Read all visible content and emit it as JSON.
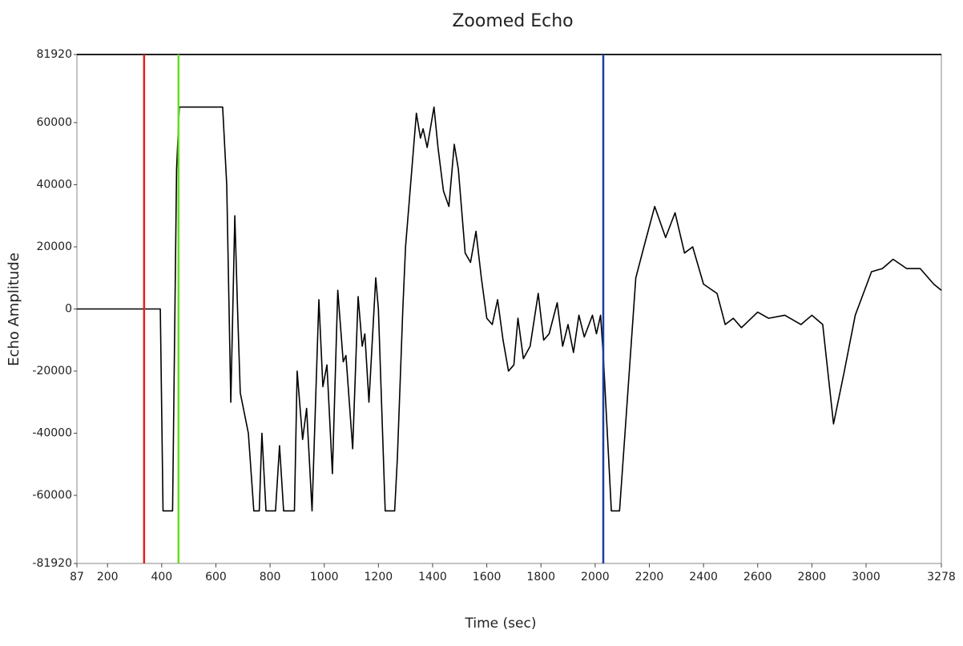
{
  "chart_data": {
    "type": "line",
    "title": "Zoomed Echo",
    "x_label": "Time (sec)",
    "y_label": "Echo Amplitude",
    "color": "#000000",
    "x": [
      87,
      395,
      405,
      440,
      455,
      465,
      625,
      640,
      655,
      670,
      680,
      690,
      720,
      740,
      760,
      770,
      785,
      820,
      835,
      850,
      890,
      900,
      920,
      935,
      955,
      980,
      995,
      1010,
      1030,
      1050,
      1070,
      1080,
      1105,
      1125,
      1140,
      1150,
      1165,
      1190,
      1200,
      1225,
      1260,
      1270,
      1290,
      1300,
      1340,
      1355,
      1365,
      1380,
      1405,
      1420,
      1440,
      1460,
      1480,
      1495,
      1520,
      1540,
      1560,
      1580,
      1600,
      1620,
      1640,
      1660,
      1680,
      1700,
      1715,
      1735,
      1760,
      1790,
      1810,
      1830,
      1860,
      1880,
      1900,
      1920,
      1940,
      1960,
      1990,
      2005,
      2020,
      2030,
      2060,
      2090,
      2110,
      2150,
      2180,
      2220,
      2260,
      2295,
      2330,
      2360,
      2400,
      2450,
      2480,
      2510,
      2540,
      2600,
      2640,
      2700,
      2760,
      2800,
      2840,
      2880,
      2920,
      2960,
      3020,
      3060,
      3100,
      3150,
      3200,
      3250,
      3278
    ],
    "values": [
      0,
      0,
      -65000,
      -65000,
      45000,
      65000,
      65000,
      40000,
      -30000,
      30000,
      0,
      -27000,
      -40000,
      -65000,
      -65000,
      -40000,
      -65000,
      -65000,
      -44000,
      -65000,
      -65000,
      -20000,
      -42000,
      -32000,
      -65000,
      3000,
      -25000,
      -18000,
      -53000,
      6000,
      -17000,
      -15000,
      -45000,
      4000,
      -12000,
      -8000,
      -30000,
      10000,
      0,
      -65000,
      -65000,
      -48000,
      0,
      20000,
      63000,
      55000,
      58000,
      52000,
      65000,
      52000,
      38000,
      33000,
      53000,
      45000,
      18000,
      15000,
      25000,
      10000,
      -3000,
      -5000,
      3000,
      -10000,
      -20000,
      -18000,
      -3000,
      -16000,
      -12000,
      5000,
      -10000,
      -8000,
      2000,
      -12000,
      -5000,
      -14000,
      -2000,
      -9000,
      -2000,
      -8000,
      -2000,
      -15000,
      -65000,
      -65000,
      -40000,
      10000,
      20000,
      33000,
      23000,
      31000,
      18000,
      20000,
      8000,
      5000,
      -5000,
      -3000,
      -6000,
      -1000,
      -3000,
      -2000,
      -5000,
      -2000,
      -5000,
      -37000,
      -20000,
      -2000,
      12000,
      13000,
      16000,
      13000,
      13000,
      8000,
      6000
    ],
    "cursors": [
      {
        "x": 335,
        "color": "#e0201c"
      },
      {
        "x": 462,
        "color": "#66dd22"
      },
      {
        "x": 2030,
        "color": "#1a3fa0"
      }
    ],
    "xlim": [
      87,
      3278
    ],
    "xticks": [
      87,
      200,
      400,
      600,
      800,
      1000,
      1200,
      1400,
      1600,
      1800,
      2000,
      2200,
      2400,
      2600,
      2800,
      3000,
      3278
    ],
    "ylim": [
      -81920,
      81920
    ],
    "yticks": [
      -81920,
      -60000,
      -40000,
      -20000,
      0,
      20000,
      40000,
      60000,
      81920
    ]
  }
}
